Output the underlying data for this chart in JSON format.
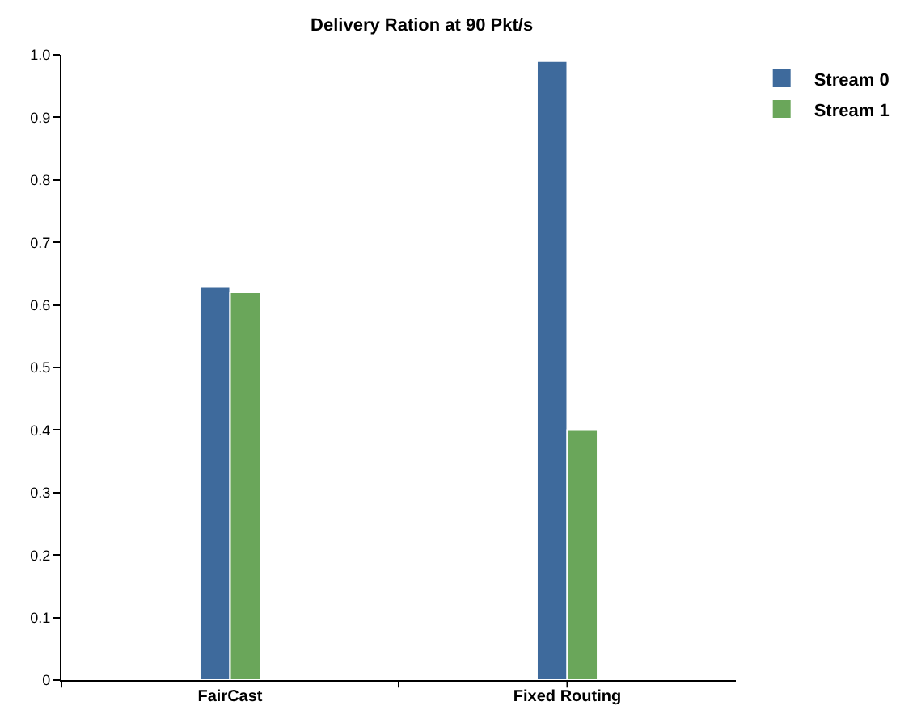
{
  "chart_data": {
    "type": "bar",
    "title": "Delivery Ration at 90 Pkt/s",
    "categories": [
      "FairCast",
      "Fixed Routing"
    ],
    "series": [
      {
        "name": "Stream 0",
        "color": "#3e6a9c",
        "values": [
          0.63,
          0.99
        ]
      },
      {
        "name": "Stream 1",
        "color": "#6aa65a",
        "values": [
          0.62,
          0.4
        ]
      }
    ],
    "ylim": [
      0,
      1
    ],
    "yticks": [
      0,
      0.1,
      0.2,
      0.3,
      0.4,
      0.5,
      0.6,
      0.7,
      0.8,
      0.9,
      {
        "value": 1,
        "label": "1.0"
      }
    ],
    "grid": false,
    "legend": "top right"
  }
}
